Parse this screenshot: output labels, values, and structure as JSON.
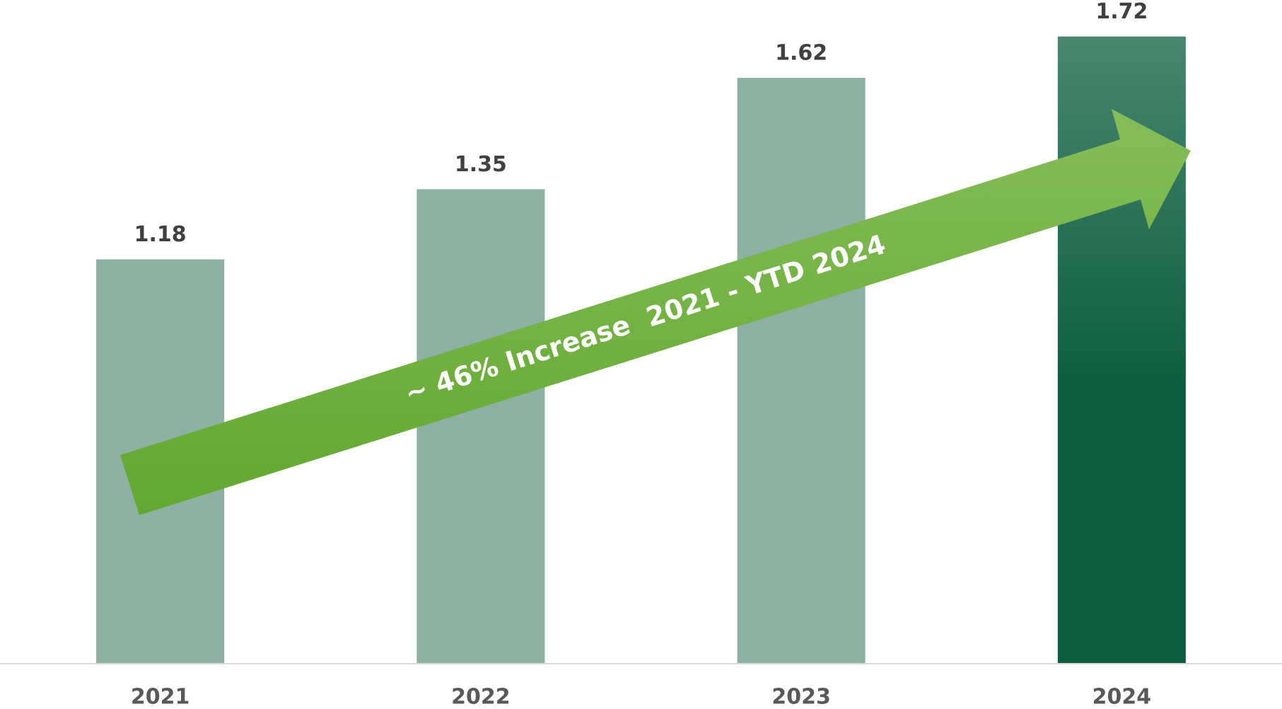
{
  "chart_data": {
    "type": "bar",
    "categories": [
      "2021",
      "2022",
      "2023",
      "2024"
    ],
    "values": [
      1.18,
      1.35,
      1.62,
      1.72
    ],
    "colors": [
      "#8db1a3",
      "#8db1a3",
      "#8db1a3",
      "#0d5e40"
    ],
    "ylim": [
      0.2,
      1.8
    ],
    "annotation": "~ 46% Increase  2021 - YTD 2024"
  }
}
